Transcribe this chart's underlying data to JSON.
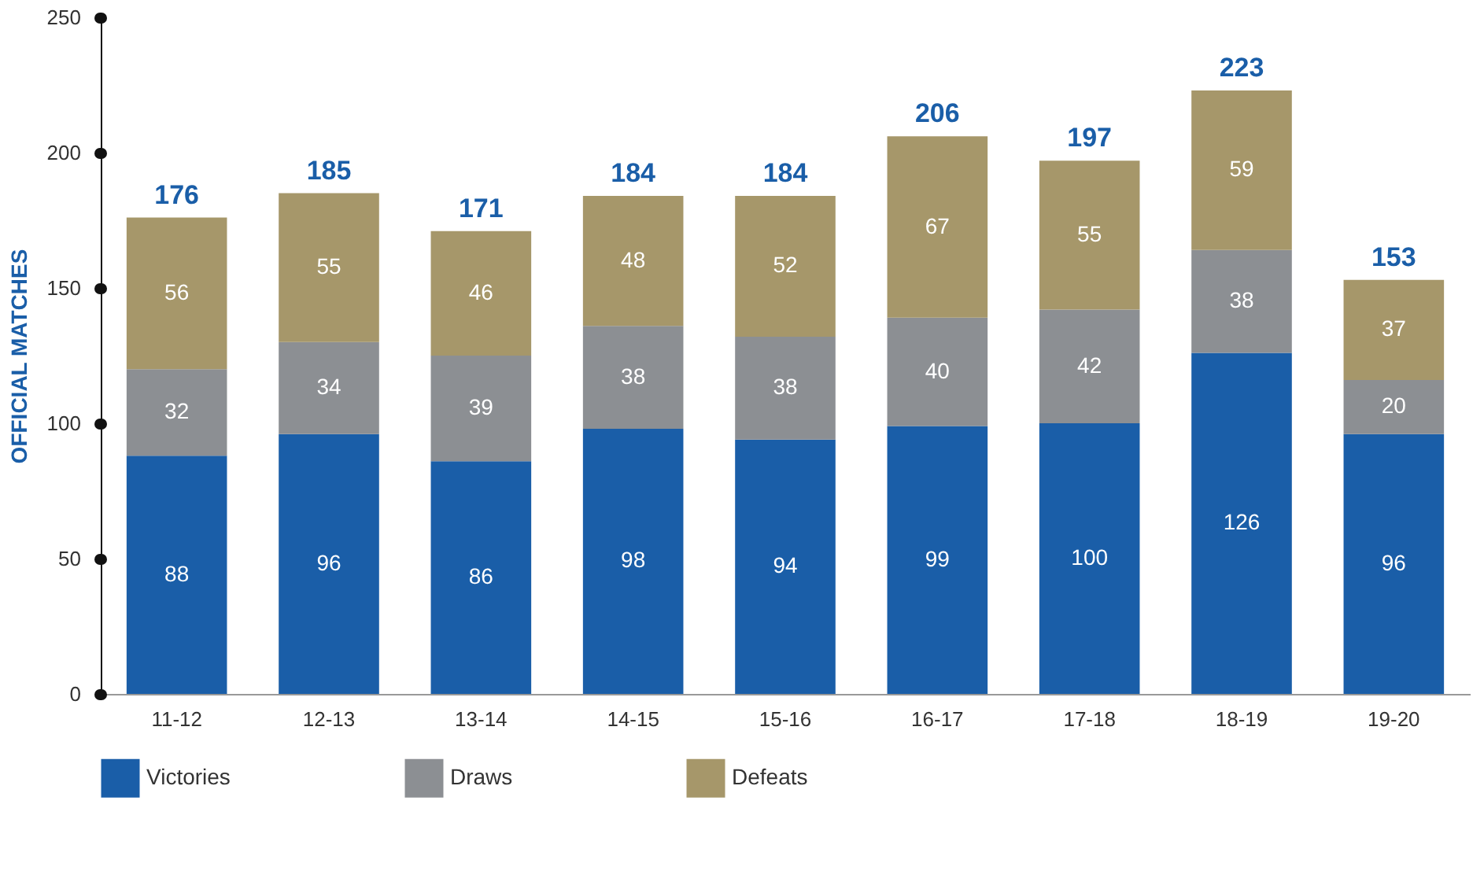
{
  "chart_data": {
    "type": "bar",
    "stacked": true,
    "ylabel": "OFFICIAL MATCHES",
    "categories": [
      "11-12",
      "12-13",
      "13-14",
      "14-15",
      "15-16",
      "16-17",
      "17-18",
      "18-19",
      "19-20"
    ],
    "series": [
      {
        "name": "Victories",
        "color": "#1a5ea8",
        "values": [
          88,
          96,
          86,
          98,
          94,
          99,
          100,
          126,
          96
        ]
      },
      {
        "name": "Draws",
        "color": "#8c8f93",
        "values": [
          32,
          34,
          39,
          38,
          38,
          40,
          42,
          38,
          20
        ]
      },
      {
        "name": "Defeats",
        "color": "#a6976a",
        "values": [
          56,
          55,
          46,
          48,
          52,
          67,
          55,
          59,
          37
        ]
      }
    ],
    "totals": [
      "176",
      "185",
      "171",
      "184",
      "184",
      "206",
      "197",
      "223",
      "153"
    ],
    "ylim": [
      0,
      250
    ],
    "yticks": [
      0,
      50,
      100,
      150,
      200,
      250
    ],
    "data_labels": true,
    "grid": false,
    "legend": "bottom"
  }
}
